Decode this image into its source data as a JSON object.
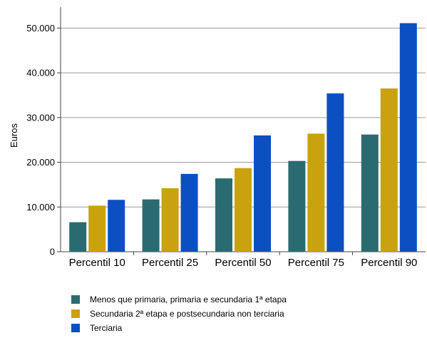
{
  "chart_data": {
    "type": "bar",
    "ylabel": "Euros",
    "xlabel": "",
    "ylim": [
      0,
      55000
    ],
    "yticks": [
      {
        "value": 0,
        "label": "0"
      },
      {
        "value": 10000,
        "label": "10.000"
      },
      {
        "value": 20000,
        "label": "20.000"
      },
      {
        "value": 30000,
        "label": "30.000"
      },
      {
        "value": 40000,
        "label": "40.000"
      },
      {
        "value": 50000,
        "label": "50.000"
      }
    ],
    "grid": true,
    "legend_position": "bottom",
    "categories": [
      "Percentil 10",
      "Percentil 25",
      "Percentil 50",
      "Percentil 75",
      "Percentil 90"
    ],
    "series": [
      {
        "name": "Menos que primaria, primaria e secundaria 1ª etapa",
        "color": "#2a6b72",
        "values": [
          6600,
          11700,
          16400,
          20300,
          26200
        ]
      },
      {
        "name": "Secundaria 2ª etapa e postsecundaria non terciaria",
        "color": "#c9a20f",
        "values": [
          10300,
          14200,
          18700,
          26400,
          36500
        ]
      },
      {
        "name": "Terciaria",
        "color": "#0b4fc2",
        "values": [
          11600,
          17400,
          26000,
          35400,
          51100
        ]
      }
    ]
  }
}
